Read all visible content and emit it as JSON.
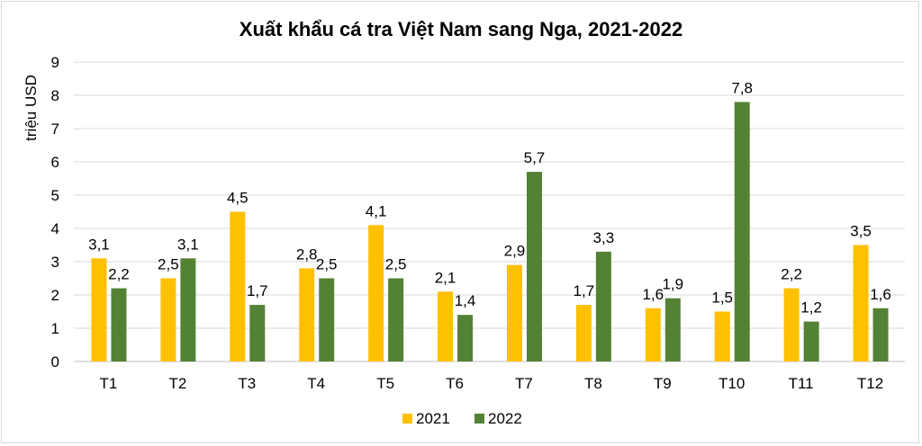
{
  "chart_data": {
    "type": "bar",
    "title": "Xuất khẩu cá tra Việt Nam sang Nga, 2021-2022",
    "xlabel": "",
    "ylabel": "triệu USD",
    "ylim": [
      0,
      9
    ],
    "yticks": [
      "0",
      "1",
      "2",
      "3",
      "4",
      "5",
      "6",
      "7",
      "8",
      "9"
    ],
    "grid": true,
    "legend": "bottom",
    "categories": [
      "T1",
      "T2",
      "T3",
      "T4",
      "T5",
      "T6",
      "T7",
      "T8",
      "T9",
      "T10",
      "T11",
      "T12"
    ],
    "series": [
      {
        "name": "2021",
        "color": "#FFC000",
        "values": [
          3.1,
          2.5,
          4.5,
          2.8,
          4.1,
          2.1,
          2.9,
          1.7,
          1.6,
          1.5,
          2.2,
          3.5
        ],
        "labels": [
          "3,1",
          "2,5",
          "4,5",
          "2,8",
          "4,1",
          "2,1",
          "2,9",
          "1,7",
          "1,6",
          "1,5",
          "2,2",
          "3,5"
        ]
      },
      {
        "name": "2022",
        "color": "#548235",
        "values": [
          2.2,
          3.1,
          1.7,
          2.5,
          2.5,
          1.4,
          5.7,
          3.3,
          1.9,
          7.8,
          1.2,
          1.6
        ],
        "labels": [
          "2,2",
          "3,1",
          "1,7",
          "2,5",
          "2,5",
          "1,4",
          "5,7",
          "3,3",
          "1,9",
          "7,8",
          "1,2",
          "1,6"
        ]
      }
    ]
  }
}
